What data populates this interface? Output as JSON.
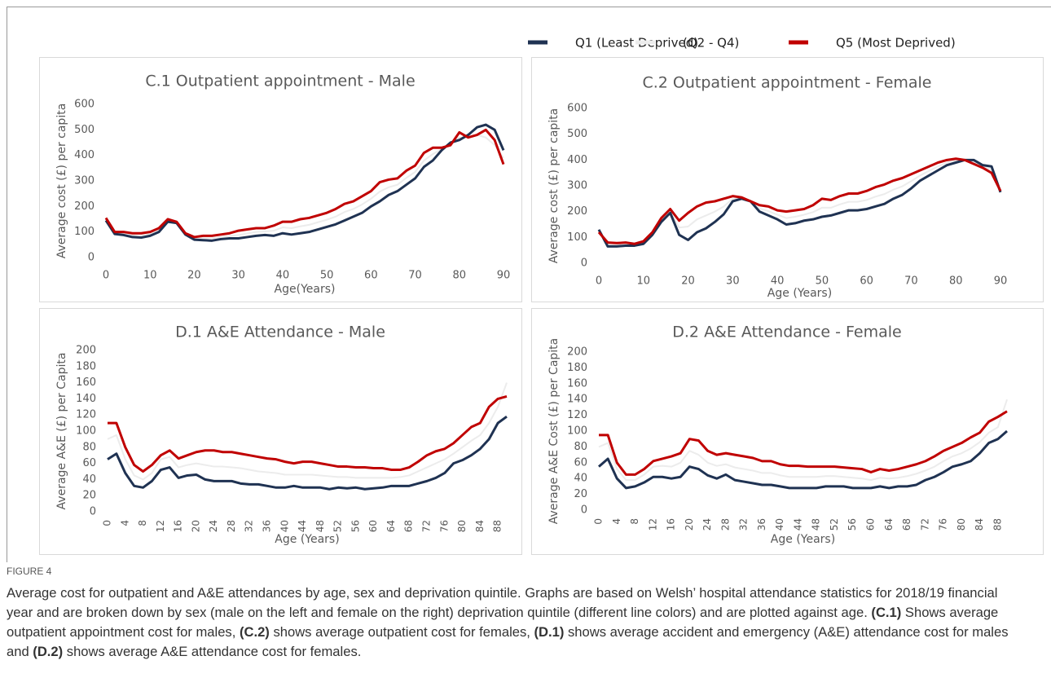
{
  "chart_data": [
    {
      "type": "line",
      "title": "C.1 Outpatient appointment - Male",
      "xlabel": "Age(Years)",
      "ylabel": "Average cost (£) per capita",
      "x": [
        0,
        2,
        4,
        6,
        8,
        10,
        12,
        14,
        16,
        18,
        20,
        22,
        24,
        26,
        28,
        30,
        32,
        34,
        36,
        38,
        40,
        42,
        44,
        46,
        48,
        50,
        52,
        54,
        56,
        58,
        60,
        62,
        64,
        66,
        68,
        70,
        72,
        74,
        76,
        78,
        80,
        82,
        84,
        86,
        88,
        90
      ],
      "xlim": [
        0,
        90
      ],
      "xticks": [
        0,
        10,
        20,
        30,
        40,
        50,
        60,
        70,
        80,
        90
      ],
      "ylim": [
        0,
        600
      ],
      "yticks": [
        0,
        100,
        200,
        300,
        400,
        500,
        600
      ],
      "series": [
        {
          "name": "(Q2 - Q4)",
          "color": "#ececec",
          "values": [
            150,
            95,
            93,
            88,
            86,
            92,
            108,
            145,
            138,
            92,
            75,
            76,
            75,
            80,
            84,
            88,
            94,
            100,
            102,
            105,
            118,
            115,
            122,
            128,
            138,
            148,
            160,
            178,
            190,
            208,
            230,
            258,
            275,
            285,
            312,
            335,
            380,
            405,
            425,
            445,
            470,
            470,
            480,
            470,
            440,
            390
          ]
        },
        {
          "name": "Q1 (Least Deprived)",
          "color": "#1f3252",
          "values": [
            145,
            92,
            88,
            80,
            78,
            85,
            100,
            140,
            135,
            90,
            70,
            68,
            66,
            72,
            75,
            75,
            80,
            85,
            88,
            85,
            95,
            90,
            95,
            100,
            110,
            120,
            130,
            145,
            160,
            175,
            200,
            220,
            245,
            260,
            285,
            310,
            355,
            380,
            420,
            450,
            460,
            480,
            510,
            520,
            500,
            420
          ]
        },
        {
          "name": "Q5 (Most Deprived)",
          "color": "#c00000",
          "values": [
            155,
            100,
            100,
            95,
            95,
            100,
            115,
            150,
            140,
            95,
            80,
            85,
            85,
            90,
            95,
            105,
            110,
            115,
            115,
            125,
            140,
            140,
            150,
            155,
            165,
            175,
            190,
            210,
            220,
            240,
            260,
            295,
            305,
            310,
            340,
            360,
            410,
            430,
            430,
            440,
            490,
            470,
            480,
            500,
            460,
            365
          ]
        }
      ]
    },
    {
      "type": "line",
      "title": "C.2 Outpatient appointment - Female",
      "xlabel": "Age  (Years)",
      "ylabel": "Average cost (£) per capita",
      "x": [
        0,
        2,
        4,
        6,
        8,
        10,
        12,
        14,
        16,
        18,
        20,
        22,
        24,
        26,
        28,
        30,
        32,
        34,
        36,
        38,
        40,
        42,
        44,
        46,
        48,
        50,
        52,
        54,
        56,
        58,
        60,
        62,
        64,
        66,
        68,
        70,
        72,
        74,
        76,
        78,
        80,
        82,
        84,
        86,
        88,
        90
      ],
      "xlim": [
        0,
        90
      ],
      "xticks": [
        0,
        10,
        20,
        30,
        40,
        50,
        60,
        70,
        80,
        90
      ],
      "ylim": [
        0,
        600
      ],
      "yticks": [
        0,
        100,
        200,
        300,
        400,
        500,
        600
      ],
      "series": [
        {
          "name": "(Q2 - Q4)",
          "color": "#ececec",
          "values": [
            125,
            72,
            72,
            74,
            72,
            80,
            115,
            168,
            202,
            138,
            142,
            170,
            185,
            200,
            220,
            250,
            252,
            240,
            212,
            202,
            188,
            175,
            180,
            188,
            198,
            215,
            215,
            228,
            238,
            238,
            245,
            258,
            268,
            285,
            298,
            318,
            340,
            358,
            375,
            390,
            398,
            400,
            392,
            375,
            362,
            278
          ]
        },
        {
          "name": "Q1 (Least Deprived)",
          "color": "#1f3252",
          "values": [
            130,
            65,
            65,
            68,
            68,
            75,
            110,
            160,
            195,
            110,
            90,
            120,
            135,
            160,
            190,
            240,
            250,
            240,
            200,
            185,
            170,
            150,
            155,
            165,
            170,
            180,
            185,
            195,
            205,
            205,
            210,
            220,
            230,
            250,
            265,
            290,
            320,
            340,
            360,
            380,
            390,
            400,
            400,
            380,
            375,
            275
          ]
        },
        {
          "name": "Q5 (Most Deprived)",
          "color": "#c00000",
          "values": [
            120,
            80,
            78,
            80,
            75,
            85,
            120,
            175,
            210,
            165,
            195,
            220,
            235,
            240,
            250,
            260,
            255,
            240,
            225,
            220,
            205,
            200,
            205,
            210,
            225,
            250,
            245,
            260,
            270,
            270,
            280,
            295,
            305,
            320,
            330,
            345,
            360,
            375,
            390,
            400,
            405,
            400,
            385,
            370,
            350,
            280
          ]
        }
      ]
    },
    {
      "type": "line",
      "title": "D.1 A&E Attendance - Male",
      "xlabel": "Age (Years)",
      "ylabel": "Average A&E (£) per Capita",
      "x": [
        0,
        2,
        4,
        6,
        8,
        10,
        12,
        14,
        16,
        18,
        20,
        22,
        24,
        26,
        28,
        30,
        32,
        34,
        36,
        38,
        40,
        42,
        44,
        46,
        48,
        50,
        52,
        54,
        56,
        58,
        60,
        62,
        64,
        66,
        68,
        70,
        72,
        74,
        76,
        78,
        80,
        82,
        84,
        86,
        88,
        90
      ],
      "xlim": [
        0,
        90
      ],
      "xticks": [
        0,
        4,
        8,
        12,
        16,
        20,
        24,
        28,
        32,
        36,
        40,
        44,
        48,
        52,
        56,
        60,
        64,
        68,
        72,
        76,
        80,
        84,
        88
      ],
      "ylim": [
        0,
        200
      ],
      "yticks": [
        0,
        20,
        40,
        60,
        80,
        100,
        120,
        140,
        160,
        180,
        200
      ],
      "series": [
        {
          "name": "(Q2 - Q4)",
          "color": "#ececec",
          "values": [
            90,
            95,
            65,
            45,
            40,
            48,
            65,
            68,
            55,
            58,
            60,
            58,
            56,
            56,
            55,
            54,
            52,
            50,
            49,
            48,
            46,
            46,
            46,
            46,
            45,
            44,
            43,
            43,
            42,
            42,
            42,
            42,
            42,
            43,
            45,
            50,
            55,
            60,
            65,
            72,
            80,
            88,
            95,
            110,
            130,
            160
          ]
        },
        {
          "name": "Q1 (Least Deprived)",
          "color": "#1f3252",
          "values": [
            65,
            72,
            48,
            32,
            30,
            38,
            52,
            55,
            42,
            45,
            46,
            40,
            38,
            38,
            38,
            35,
            34,
            34,
            32,
            30,
            30,
            32,
            30,
            30,
            30,
            28,
            30,
            29,
            30,
            28,
            29,
            30,
            32,
            32,
            32,
            35,
            38,
            42,
            48,
            60,
            64,
            70,
            78,
            90,
            110,
            118
          ]
        },
        {
          "name": "Q5 (Most Deprived)",
          "color": "#c00000",
          "values": [
            110,
            110,
            80,
            58,
            50,
            58,
            70,
            76,
            66,
            70,
            74,
            76,
            76,
            74,
            74,
            72,
            70,
            68,
            66,
            65,
            62,
            60,
            62,
            62,
            60,
            58,
            56,
            56,
            55,
            55,
            54,
            54,
            52,
            52,
            55,
            62,
            70,
            75,
            78,
            85,
            95,
            105,
            110,
            130,
            140,
            143
          ]
        }
      ]
    },
    {
      "type": "line",
      "title": "D.2 A&E Attendance - Female",
      "xlabel": "Age (Years)",
      "ylabel": "Average A&E Cost (£) per Capita",
      "x": [
        0,
        2,
        4,
        6,
        8,
        10,
        12,
        14,
        16,
        18,
        20,
        22,
        24,
        26,
        28,
        30,
        32,
        34,
        36,
        38,
        40,
        42,
        44,
        46,
        48,
        50,
        52,
        54,
        56,
        58,
        60,
        62,
        64,
        66,
        68,
        70,
        72,
        74,
        76,
        78,
        80,
        82,
        84,
        86,
        88,
        90
      ],
      "xlim": [
        0,
        90
      ],
      "xticks": [
        0,
        4,
        8,
        12,
        16,
        20,
        24,
        28,
        32,
        36,
        40,
        44,
        48,
        52,
        56,
        60,
        64,
        68,
        72,
        76,
        80,
        84,
        88
      ],
      "ylim": [
        0,
        200
      ],
      "yticks": [
        0,
        20,
        40,
        60,
        80,
        100,
        120,
        140,
        160,
        180,
        200
      ],
      "series": [
        {
          "name": "(Q2 - Q4)",
          "color": "#ececec",
          "values": [
            80,
            85,
            52,
            38,
            38,
            45,
            55,
            56,
            55,
            60,
            75,
            70,
            60,
            56,
            58,
            54,
            52,
            50,
            47,
            47,
            44,
            42,
            42,
            42,
            42,
            43,
            43,
            42,
            41,
            40,
            38,
            41,
            40,
            41,
            43,
            46,
            50,
            55,
            62,
            68,
            72,
            78,
            86,
            98,
            105,
            140
          ]
        },
        {
          "name": "Q1 (Least Deprived)",
          "color": "#1f3252",
          "values": [
            55,
            65,
            40,
            28,
            30,
            35,
            42,
            42,
            40,
            42,
            55,
            52,
            44,
            40,
            45,
            38,
            36,
            34,
            32,
            32,
            30,
            28,
            28,
            28,
            28,
            30,
            30,
            30,
            28,
            28,
            28,
            30,
            28,
            30,
            30,
            32,
            38,
            42,
            48,
            55,
            58,
            62,
            72,
            85,
            90,
            100
          ]
        },
        {
          "name": "Q5 (Most Deprived)",
          "color": "#c00000",
          "values": [
            95,
            95,
            60,
            45,
            45,
            52,
            62,
            65,
            68,
            72,
            90,
            88,
            75,
            70,
            72,
            70,
            68,
            66,
            62,
            62,
            58,
            56,
            56,
            55,
            55,
            55,
            55,
            54,
            53,
            52,
            48,
            52,
            50,
            52,
            55,
            58,
            62,
            68,
            75,
            80,
            85,
            92,
            98,
            112,
            118,
            125
          ]
        }
      ]
    }
  ],
  "caption": {
    "label": "FIGURE 4",
    "parts": [
      "Average cost for outpatient and A&E attendances by age, sex and deprivation quintile. Graphs are based on Welsh’ hospital attendance statistics for 2018/19 financial year and are broken down by sex (male on the left and female on the right) deprivation quintile (different line colors) and are plotted against age. ",
      "(C.1)",
      " Shows average outpatient appointment cost for males, ",
      "(C.2)",
      " shows average outpatient cost for females, ",
      "(D.1)",
      " shows average accident and emergency (A&E) attendance cost for males and ",
      "(D.2)",
      " shows average A&E attendance cost for females."
    ]
  }
}
